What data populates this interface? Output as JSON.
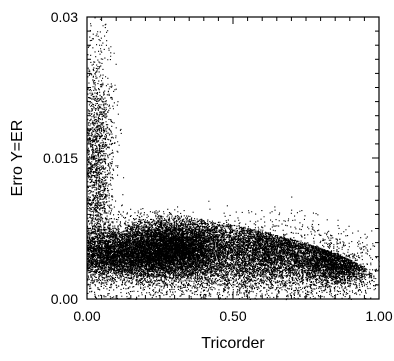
{
  "chart_data": {
    "type": "scatter",
    "title": "",
    "xlabel": "Tricorder",
    "ylabel": "Erro Y=ER",
    "xlim": [
      0.0,
      1.0
    ],
    "ylim": [
      0.0,
      0.03
    ],
    "x_ticks": [
      {
        "value": 0.0,
        "label": "0.00"
      },
      {
        "value": 0.5,
        "label": "0.50"
      },
      {
        "value": 1.0,
        "label": "1.00"
      }
    ],
    "y_ticks": [
      {
        "value": 0.0,
        "label": "0.00"
      },
      {
        "value": 0.015,
        "label": "0.015"
      },
      {
        "value": 0.03,
        "label": "0.03"
      }
    ],
    "grid": false,
    "legend": "none",
    "point_color": "#000000",
    "point_count": 26000,
    "series": [
      {
        "values_description": "",
        "clusters": [
          {
            "x_center": 0.3,
            "y_center": 0.0055,
            "x_spread": 0.09,
            "y_spread": 0.0016,
            "weight": 0.3
          },
          {
            "x_center": 0.1,
            "y_center": 0.0048,
            "x_spread": 0.1,
            "y_spread": 0.0013,
            "weight": 0.18
          },
          {
            "x_center": 0.62,
            "y_center": 0.0056,
            "x_spread": 0.12,
            "y_spread": 0.0018,
            "weight": 0.22
          },
          {
            "x_center": 0.86,
            "y_center": 0.0042,
            "x_spread": 0.07,
            "y_spread": 0.0014,
            "weight": 0.14
          },
          {
            "x_center": 0.03,
            "y_center": 0.014,
            "x_spread": 0.03,
            "y_spread": 0.0065,
            "weight": 0.08
          },
          {
            "x_center": 0.5,
            "y_center": 0.0025,
            "x_spread": 0.3,
            "y_spread": 0.0014,
            "weight": 0.08
          }
        ]
      }
    ]
  }
}
